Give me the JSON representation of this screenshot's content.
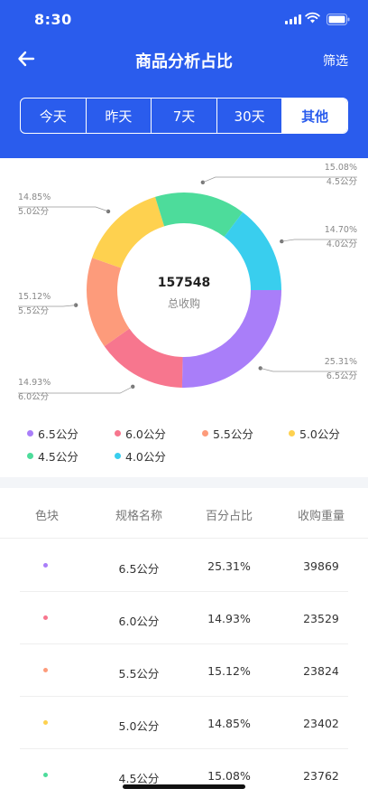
{
  "status": {
    "time": "8:30"
  },
  "nav": {
    "title": "商品分析占比",
    "filter": "筛选"
  },
  "tabs": [
    {
      "label": "今天"
    },
    {
      "label": "昨天"
    },
    {
      "label": "7天"
    },
    {
      "label": "30天"
    },
    {
      "label": "其他",
      "active": true
    }
  ],
  "center": {
    "total": "157548",
    "label": "总收购"
  },
  "chart_data": {
    "type": "pie",
    "donut": true,
    "slices": [
      {
        "label": "6.5公分",
        "percent": 25.31,
        "color": "#a97ef9"
      },
      {
        "label": "6.0公分",
        "percent": 14.93,
        "color": "#f7768e"
      },
      {
        "label": "5.5公分",
        "percent": 15.12,
        "color": "#fd9b7b"
      },
      {
        "label": "5.0公分",
        "percent": 14.85,
        "color": "#fed14f"
      },
      {
        "label": "4.5公分",
        "percent": 15.08,
        "color": "#4ddc9b"
      },
      {
        "label": "4.0公分",
        "percent": 14.7,
        "color": "#39ceee"
      }
    ],
    "percent_labels": [
      "25.31%",
      "14.93%",
      "15.12%",
      "14.85%",
      "15.08%",
      "14.70%"
    ],
    "legend_placement": "bottom"
  },
  "table": {
    "headers": [
      "色块",
      "规格名称",
      "百分占比",
      "收购重量"
    ],
    "rows": [
      {
        "color": "#a97ef9",
        "name": "6.5公分",
        "percent": "25.31%",
        "weight": "39869"
      },
      {
        "color": "#f7768e",
        "name": "6.0公分",
        "percent": "14.93%",
        "weight": "23529"
      },
      {
        "color": "#fd9b7b",
        "name": "5.5公分",
        "percent": "15.12%",
        "weight": "23824"
      },
      {
        "color": "#fed14f",
        "name": "5.0公分",
        "percent": "14.85%",
        "weight": "23402"
      },
      {
        "color": "#4ddc9b",
        "name": "4.5公分",
        "percent": "15.08%",
        "weight": "23762"
      }
    ]
  },
  "colors": {
    "brand": "#2a5ced"
  }
}
